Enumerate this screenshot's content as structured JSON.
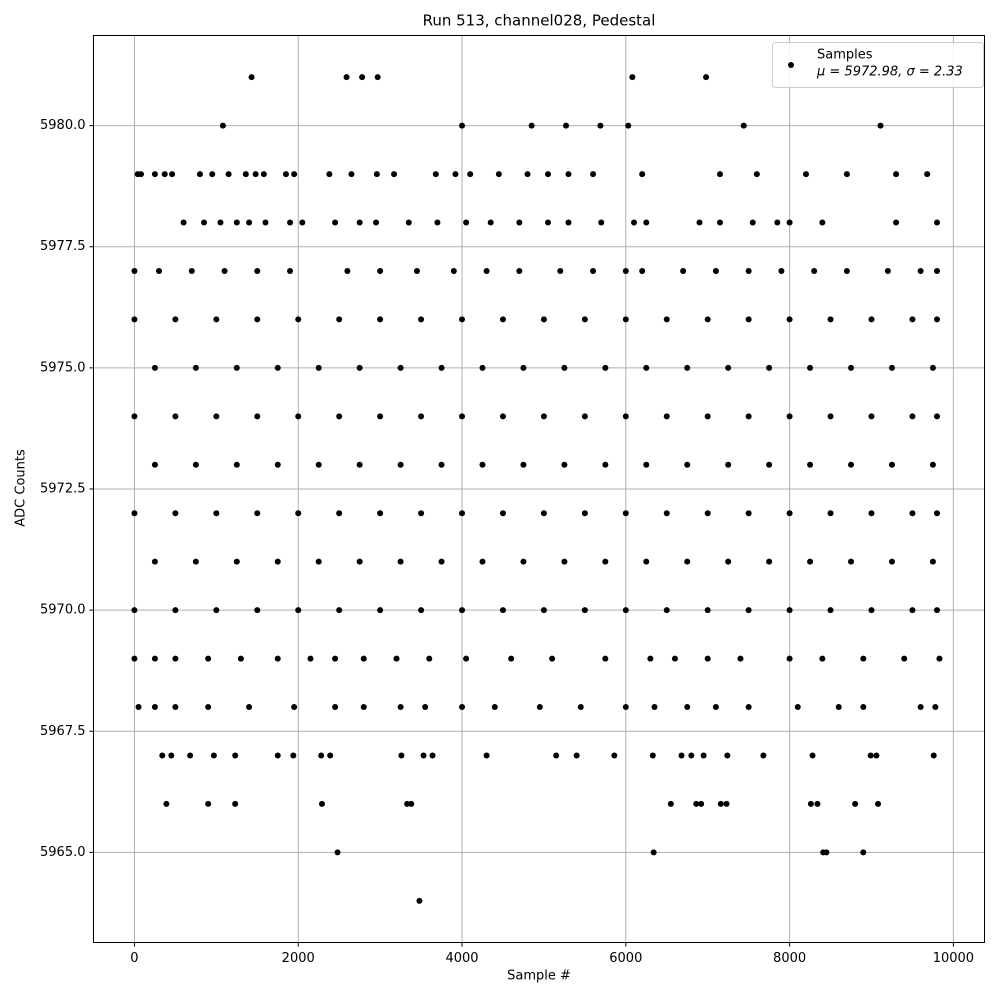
{
  "chart_data": {
    "type": "scatter",
    "title": "Run 513, channel028, Pedestal",
    "xlabel": "Sample #",
    "ylabel": "ADC Counts",
    "xlim": [
      -500,
      10380
    ],
    "ylim": [
      5963.14,
      5981.86
    ],
    "xticks": [
      0,
      2000,
      4000,
      6000,
      8000,
      10000
    ],
    "yticks": [
      {
        "value": 5965,
        "label": "5965.0"
      },
      {
        "value": 5967.5,
        "label": "5967.5"
      },
      {
        "value": 5970,
        "label": "5970.0"
      },
      {
        "value": 5972.5,
        "label": "5972.5"
      },
      {
        "value": 5975,
        "label": "5975.0"
      },
      {
        "value": 5977.5,
        "label": "5977.5"
      },
      {
        "value": 5980,
        "label": "5980.0"
      }
    ],
    "grid": true,
    "legend": "upper right",
    "series": [
      {
        "name": "Samples",
        "stats": "μ = 5972.98, σ = 2.33",
        "color": "#000000",
        "x": [
          1430,
          2590,
          2780,
          2970,
          6080,
          6980,
          1080,
          4000,
          4850,
          5270,
          5690,
          6030,
          7440,
          9110,
          40,
          80,
          250,
          370,
          460,
          800,
          950,
          1150,
          1360,
          1480,
          1580,
          1850,
          1950,
          2380,
          2650,
          2960,
          3170,
          3680,
          3920,
          4100,
          4450,
          4800,
          5050,
          5300,
          5600,
          6200,
          7150,
          7600,
          8200,
          8700,
          9300,
          9680,
          600,
          850,
          1050,
          1250,
          1400,
          1600,
          1900,
          2050,
          2450,
          2750,
          2950,
          3350,
          3700,
          4050,
          4350,
          4700,
          5050,
          5300,
          5700,
          6100,
          6250,
          6900,
          7150,
          7550,
          7850,
          8000,
          8400,
          9300,
          9800,
          0,
          300,
          700,
          1100,
          1500,
          1900,
          2600,
          3000,
          3450,
          3900,
          4300,
          4700,
          5200,
          5600,
          6000,
          6200,
          6700,
          7100,
          7500,
          7900,
          8300,
          8700,
          9200,
          9600,
          9800,
          0,
          500,
          1000,
          1500,
          2000,
          2500,
          3000,
          3500,
          4000,
          4500,
          5000,
          5500,
          6000,
          6500,
          7000,
          7500,
          8000,
          8500,
          9000,
          9500,
          9800,
          250,
          750,
          1250,
          1750,
          2250,
          2750,
          3250,
          3750,
          4250,
          4750,
          5250,
          5750,
          6250,
          6750,
          7250,
          7750,
          8250,
          8750,
          9250,
          9750,
          0,
          500,
          1000,
          1500,
          2000,
          2500,
          3000,
          3500,
          4000,
          4500,
          5000,
          5500,
          6000,
          6500,
          7000,
          7500,
          8000,
          8500,
          9000,
          9500,
          9800,
          250,
          750,
          1250,
          1750,
          2250,
          2750,
          3250,
          3750,
          4250,
          4750,
          5250,
          5750,
          6250,
          6750,
          7250,
          7750,
          8250,
          8750,
          9250,
          9750,
          0,
          500,
          1000,
          1500,
          2000,
          2500,
          3000,
          3500,
          4000,
          4500,
          5000,
          5500,
          6000,
          6500,
          7000,
          7500,
          8000,
          8500,
          9000,
          9500,
          9800,
          250,
          750,
          1250,
          1750,
          2250,
          2750,
          3250,
          3750,
          4250,
          4750,
          5250,
          5750,
          6250,
          6750,
          7250,
          7750,
          8250,
          8750,
          9250,
          9750,
          0,
          500,
          1000,
          1500,
          2000,
          2500,
          3000,
          3500,
          4000,
          4500,
          5000,
          5500,
          6000,
          6500,
          7000,
          7500,
          8000,
          8500,
          9000,
          9500,
          9800,
          0,
          250,
          500,
          900,
          1300,
          1750,
          2150,
          2450,
          2800,
          3200,
          3600,
          4050,
          4600,
          5100,
          5750,
          6300,
          6600,
          7000,
          7400,
          8000,
          8400,
          8900,
          9400,
          9830,
          50,
          250,
          500,
          900,
          1400,
          1950,
          2450,
          2800,
          3250,
          3550,
          4000,
          4400,
          4950,
          5450,
          6000,
          6350,
          6750,
          7100,
          7500,
          8100,
          8600,
          8900,
          9600,
          9780,
          340,
          450,
          680,
          970,
          1230,
          1750,
          1940,
          2280,
          2390,
          3260,
          3530,
          3640,
          4300,
          5150,
          5400,
          5860,
          6330,
          6680,
          6800,
          6950,
          7240,
          7680,
          8280,
          8990,
          9060,
          9760,
          390,
          900,
          1230,
          2290,
          3330,
          3380,
          6550,
          6860,
          6920,
          7160,
          7230,
          8260,
          8340,
          8800,
          9080,
          2480,
          6340,
          8410,
          8450,
          8900,
          3480
        ],
        "values": [
          5981,
          5981,
          5981,
          5981,
          5981,
          5981,
          5980,
          5980,
          5980,
          5980,
          5980,
          5980,
          5980,
          5980,
          5979,
          5979,
          5979,
          5979,
          5979,
          5979,
          5979,
          5979,
          5979,
          5979,
          5979,
          5979,
          5979,
          5979,
          5979,
          5979,
          5979,
          5979,
          5979,
          5979,
          5979,
          5979,
          5979,
          5979,
          5979,
          5979,
          5979,
          5979,
          5979,
          5979,
          5979,
          5979,
          5978,
          5978,
          5978,
          5978,
          5978,
          5978,
          5978,
          5978,
          5978,
          5978,
          5978,
          5978,
          5978,
          5978,
          5978,
          5978,
          5978,
          5978,
          5978,
          5978,
          5978,
          5978,
          5978,
          5978,
          5978,
          5978,
          5978,
          5978,
          5978,
          5977,
          5977,
          5977,
          5977,
          5977,
          5977,
          5977,
          5977,
          5977,
          5977,
          5977,
          5977,
          5977,
          5977,
          5977,
          5977,
          5977,
          5977,
          5977,
          5977,
          5977,
          5977,
          5977,
          5977,
          5977,
          5976,
          5976,
          5976,
          5976,
          5976,
          5976,
          5976,
          5976,
          5976,
          5976,
          5976,
          5976,
          5976,
          5976,
          5976,
          5976,
          5976,
          5976,
          5976,
          5976,
          5976,
          5975,
          5975,
          5975,
          5975,
          5975,
          5975,
          5975,
          5975,
          5975,
          5975,
          5975,
          5975,
          5975,
          5975,
          5975,
          5975,
          5975,
          5975,
          5975,
          5975,
          5974,
          5974,
          5974,
          5974,
          5974,
          5974,
          5974,
          5974,
          5974,
          5974,
          5974,
          5974,
          5974,
          5974,
          5974,
          5974,
          5974,
          5974,
          5974,
          5974,
          5974,
          5973,
          5973,
          5973,
          5973,
          5973,
          5973,
          5973,
          5973,
          5973,
          5973,
          5973,
          5973,
          5973,
          5973,
          5973,
          5973,
          5973,
          5973,
          5973,
          5973,
          5972,
          5972,
          5972,
          5972,
          5972,
          5972,
          5972,
          5972,
          5972,
          5972,
          5972,
          5972,
          5972,
          5972,
          5972,
          5972,
          5972,
          5972,
          5972,
          5972,
          5972,
          5971,
          5971,
          5971,
          5971,
          5971,
          5971,
          5971,
          5971,
          5971,
          5971,
          5971,
          5971,
          5971,
          5971,
          5971,
          5971,
          5971,
          5971,
          5971,
          5971,
          5970,
          5970,
          5970,
          5970,
          5970,
          5970,
          5970,
          5970,
          5970,
          5970,
          5970,
          5970,
          5970,
          5970,
          5970,
          5970,
          5970,
          5970,
          5970,
          5970,
          5970,
          5969,
          5969,
          5969,
          5969,
          5969,
          5969,
          5969,
          5969,
          5969,
          5969,
          5969,
          5969,
          5969,
          5969,
          5969,
          5969,
          5969,
          5969,
          5969,
          5969,
          5969,
          5969,
          5969,
          5969,
          5968,
          5968,
          5968,
          5968,
          5968,
          5968,
          5968,
          5968,
          5968,
          5968,
          5968,
          5968,
          5968,
          5968,
          5968,
          5968,
          5968,
          5968,
          5968,
          5968,
          5968,
          5968,
          5968,
          5968,
          5967,
          5967,
          5967,
          5967,
          5967,
          5967,
          5967,
          5967,
          5967,
          5967,
          5967,
          5967,
          5967,
          5967,
          5967,
          5967,
          5967,
          5967,
          5967,
          5967,
          5967,
          5967,
          5967,
          5967,
          5967,
          5967,
          5966,
          5966,
          5966,
          5966,
          5966,
          5966,
          5966,
          5966,
          5966,
          5966,
          5966,
          5966,
          5966,
          5966,
          5966,
          5965,
          5965,
          5965,
          5965,
          5965,
          5964
        ]
      }
    ]
  }
}
